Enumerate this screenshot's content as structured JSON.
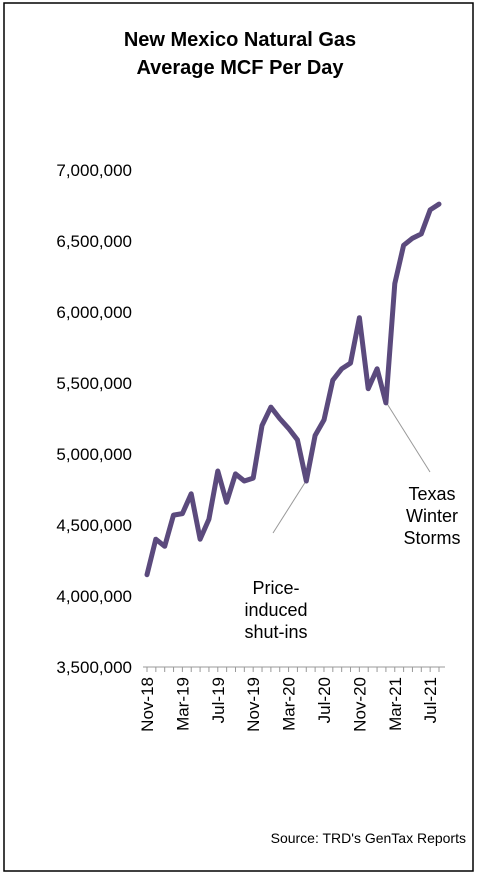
{
  "chart_data": {
    "type": "line",
    "title": [
      "New Mexico Natural Gas",
      "Average MCF Per Day"
    ],
    "source": "Source: TRD's GenTax Reports",
    "categories": [
      "Nov-18",
      null,
      null,
      null,
      "Mar-19",
      null,
      null,
      null,
      "Jul-19",
      null,
      null,
      null,
      "Nov-19",
      null,
      null,
      null,
      "Mar-20",
      null,
      null,
      null,
      "Jul-20",
      null,
      null,
      null,
      "Nov-20",
      null,
      null,
      null,
      "Mar-21",
      null,
      null,
      null,
      "Jul-21",
      null
    ],
    "series": [
      {
        "color": "#5b4a7d",
        "values": [
          4150000,
          4400000,
          4350000,
          4570000,
          4580000,
          4720000,
          4400000,
          4540000,
          4880000,
          4660000,
          4860000,
          4810000,
          4830000,
          5200000,
          5330000,
          5250000,
          5180000,
          5100000,
          4810000,
          5130000,
          5240000,
          5520000,
          5600000,
          5640000,
          5960000,
          5460000,
          5600000,
          5360000,
          6200000,
          6470000,
          6520000,
          6550000,
          6720000,
          6760000
        ]
      }
    ],
    "ylim": [
      3500000,
      7000000
    ],
    "yticks": [
      {
        "value": 3500000,
        "label": "3,500,000"
      },
      {
        "value": 4000000,
        "label": "4,000,000"
      },
      {
        "value": 4500000,
        "label": "4,500,000"
      },
      {
        "value": 5000000,
        "label": "5,000,000"
      },
      {
        "value": 5500000,
        "label": "5,500,000"
      },
      {
        "value": 6000000,
        "label": "6,000,000"
      },
      {
        "value": 6500000,
        "label": "6,500,000"
      },
      {
        "value": 7000000,
        "label": "7,000,000"
      }
    ],
    "annotations": [
      {
        "text": [
          "Price-",
          "induced",
          "shut-ins"
        ]
      },
      {
        "text": [
          "Texas",
          "Winter",
          "Storms"
        ]
      }
    ]
  }
}
